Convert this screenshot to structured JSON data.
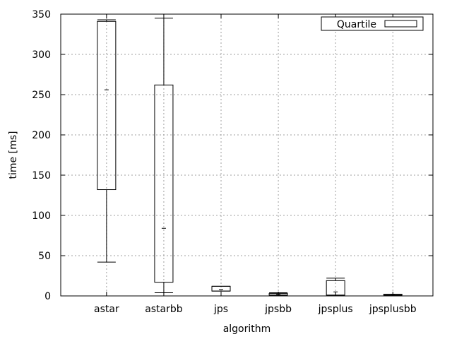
{
  "chart_data": {
    "type": "box",
    "xlabel": "algorithm",
    "ylabel": "time [ms]",
    "ylim": [
      0,
      350
    ],
    "yticks": [
      0,
      50,
      100,
      150,
      200,
      250,
      300,
      350
    ],
    "grid": true,
    "legend": {
      "label": "Quartile",
      "placement": "top-right"
    },
    "categories": [
      "astar",
      "astarbb",
      "jps",
      "jpsbb",
      "jpsplus",
      "jpsplusbb"
    ],
    "boxes": [
      {
        "min": 42,
        "q1": 132,
        "median": 256,
        "q3": 341,
        "max": 343
      },
      {
        "min": 4,
        "q1": 17,
        "median": 84,
        "q3": 262,
        "max": 345
      },
      {
        "min": 6,
        "q1": 6,
        "median": 8,
        "q3": 12,
        "max": 12
      },
      {
        "min": 1,
        "q1": 1,
        "median": 2,
        "q3": 3,
        "max": 4
      },
      {
        "min": 1,
        "q1": 1,
        "median": 5,
        "q3": 19,
        "max": 22
      },
      {
        "min": 1,
        "q1": 1,
        "median": 2,
        "q3": 2,
        "max": 2
      }
    ]
  }
}
